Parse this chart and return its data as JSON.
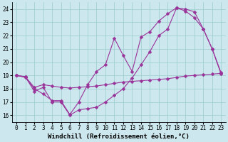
{
  "bg_color": "#cce8ee",
  "grid_color": "#99cccc",
  "line_color": "#993399",
  "line1_y": [
    19.0,
    18.9,
    17.8,
    18.1,
    17.0,
    17.0,
    16.0,
    16.4,
    16.5,
    16.6,
    17.0,
    17.5,
    18.0,
    18.8,
    19.8,
    20.8,
    22.0,
    22.5,
    24.1,
    24.0,
    23.8,
    22.5,
    21.0,
    19.1
  ],
  "line2_y": [
    19.0,
    18.9,
    18.1,
    18.3,
    18.2,
    18.1,
    18.05,
    18.1,
    18.15,
    18.2,
    18.3,
    18.4,
    18.5,
    18.55,
    18.6,
    18.65,
    18.7,
    18.75,
    18.85,
    18.95,
    19.0,
    19.05,
    19.1,
    19.15
  ],
  "line3_y": [
    19.0,
    18.85,
    18.0,
    17.6,
    17.1,
    17.1,
    16.05,
    17.0,
    18.3,
    19.3,
    19.8,
    21.8,
    20.5,
    19.3,
    21.9,
    22.3,
    23.1,
    23.65,
    24.1,
    23.85,
    23.35,
    22.5,
    21.0,
    19.2
  ],
  "x": [
    0,
    1,
    2,
    3,
    4,
    5,
    6,
    7,
    8,
    9,
    10,
    11,
    12,
    13,
    14,
    15,
    16,
    17,
    18,
    19,
    20,
    21,
    22,
    23
  ],
  "xlabel": "Windchill (Refroidissement éolien,°C)",
  "xlim": [
    -0.5,
    23.5
  ],
  "ylim": [
    15.5,
    24.5
  ],
  "yticks": [
    16,
    17,
    18,
    19,
    20,
    21,
    22,
    23,
    24
  ],
  "xtick_labels": [
    "0",
    "1",
    "2",
    "3",
    "4",
    "5",
    "6",
    "7",
    "8",
    "9",
    "10",
    "11",
    "12",
    "13",
    "14",
    "15",
    "16",
    "17",
    "18",
    "19",
    "20",
    "21",
    "22",
    "23"
  ],
  "marker": "D",
  "marker_size": 2.5,
  "linewidth": 0.8,
  "label_fontsize": 6.5,
  "tick_fontsize": 5.5
}
